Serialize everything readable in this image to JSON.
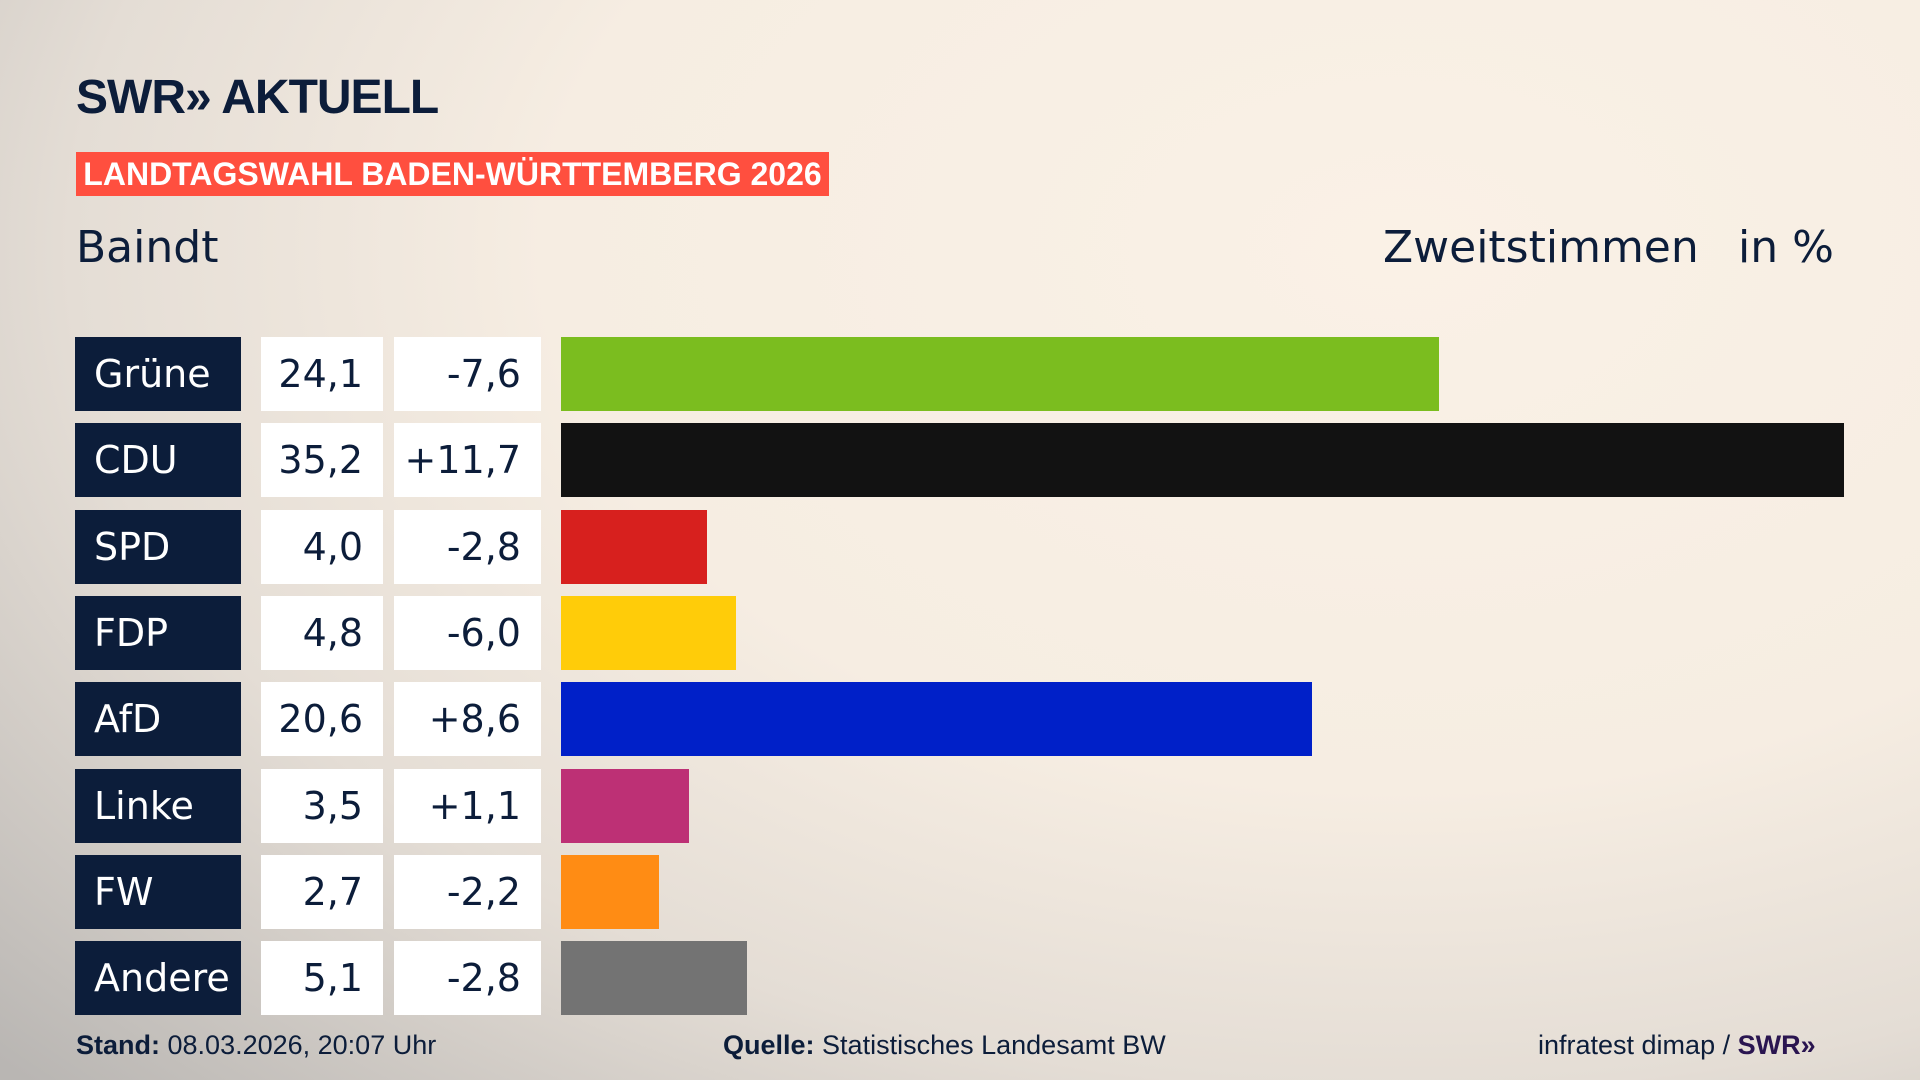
{
  "brand": {
    "logo": "SWR» AKTUELL",
    "banner": "LANDTAGSWAHL BADEN-WÜRTTEMBERG 2026"
  },
  "header": {
    "place": "Baindt",
    "vote_type": "Zweitstimmen",
    "unit": "in %"
  },
  "chart_data": {
    "type": "bar",
    "orientation": "horizontal",
    "categories": [
      "Grüne",
      "CDU",
      "SPD",
      "FDP",
      "AfD",
      "Linke",
      "FW",
      "Andere"
    ],
    "values": [
      24.1,
      35.2,
      4.0,
      4.8,
      20.6,
      3.5,
      2.7,
      5.1
    ],
    "value_labels": [
      "24,1",
      "35,2",
      "4,0",
      "4,8",
      "20,6",
      "3,5",
      "2,7",
      "5,1"
    ],
    "changes": [
      "-7,6",
      "+11,7",
      "-2,8",
      "-6,0",
      "+8,6",
      "+1,1",
      "-2,2",
      "-2,8"
    ],
    "colors": [
      "#7bbd1f",
      "#121212",
      "#d7201e",
      "#ffcc09",
      "#0020c8",
      "#bd3075",
      "#ff8c14",
      "#737373"
    ],
    "xlim": [
      0,
      35.2
    ]
  },
  "footer": {
    "stand_label": "Stand:",
    "stand_value": "08.03.2026, 20:07 Uhr",
    "source_label": "Quelle:",
    "source_value": "Statistisches Landesamt BW",
    "credit": "infratest dimap / ",
    "credit_logo": "SWR»"
  }
}
